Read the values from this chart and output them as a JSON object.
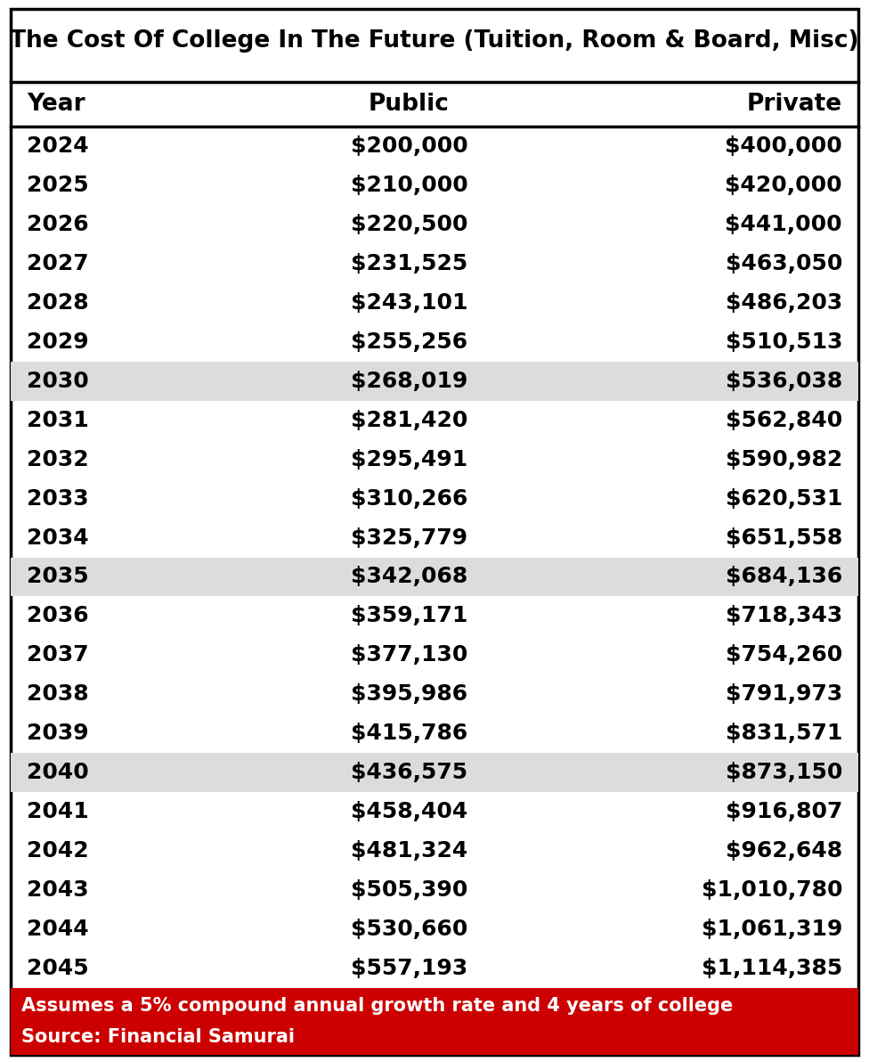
{
  "title": "The Cost Of College In The Future (Tuition, Room & Board, Misc)",
  "headers": [
    "Year",
    "Public",
    "Private"
  ],
  "rows": [
    [
      "2024",
      "$200,000",
      "$400,000"
    ],
    [
      "2025",
      "$210,000",
      "$420,000"
    ],
    [
      "2026",
      "$220,500",
      "$441,000"
    ],
    [
      "2027",
      "$231,525",
      "$463,050"
    ],
    [
      "2028",
      "$243,101",
      "$486,203"
    ],
    [
      "2029",
      "$255,256",
      "$510,513"
    ],
    [
      "2030",
      "$268,019",
      "$536,038"
    ],
    [
      "2031",
      "$281,420",
      "$562,840"
    ],
    [
      "2032",
      "$295,491",
      "$590,982"
    ],
    [
      "2033",
      "$310,266",
      "$620,531"
    ],
    [
      "2034",
      "$325,779",
      "$651,558"
    ],
    [
      "2035",
      "$342,068",
      "$684,136"
    ],
    [
      "2036",
      "$359,171",
      "$718,343"
    ],
    [
      "2037",
      "$377,130",
      "$754,260"
    ],
    [
      "2038",
      "$395,986",
      "$791,973"
    ],
    [
      "2039",
      "$415,786",
      "$831,571"
    ],
    [
      "2040",
      "$436,575",
      "$873,150"
    ],
    [
      "2041",
      "$458,404",
      "$916,807"
    ],
    [
      "2042",
      "$481,324",
      "$962,648"
    ],
    [
      "2043",
      "$505,390",
      "$1,010,780"
    ],
    [
      "2044",
      "$530,660",
      "$1,061,319"
    ],
    [
      "2045",
      "$557,193",
      "$1,114,385"
    ]
  ],
  "highlighted_rows": [
    6,
    11,
    16
  ],
  "highlight_color": "#dcdcdc",
  "footer_line1": "Assumes a 5% compound annual growth rate and 4 years of college",
  "footer_line2": "Source: Financial Samurai",
  "footer_bg": "#cc0000",
  "footer_text_color": "#ffffff",
  "border_color": "#000000",
  "bg_color": "#ffffff",
  "title_fontsize": 19,
  "header_fontsize": 19,
  "cell_fontsize": 18,
  "footer_fontsize": 15
}
